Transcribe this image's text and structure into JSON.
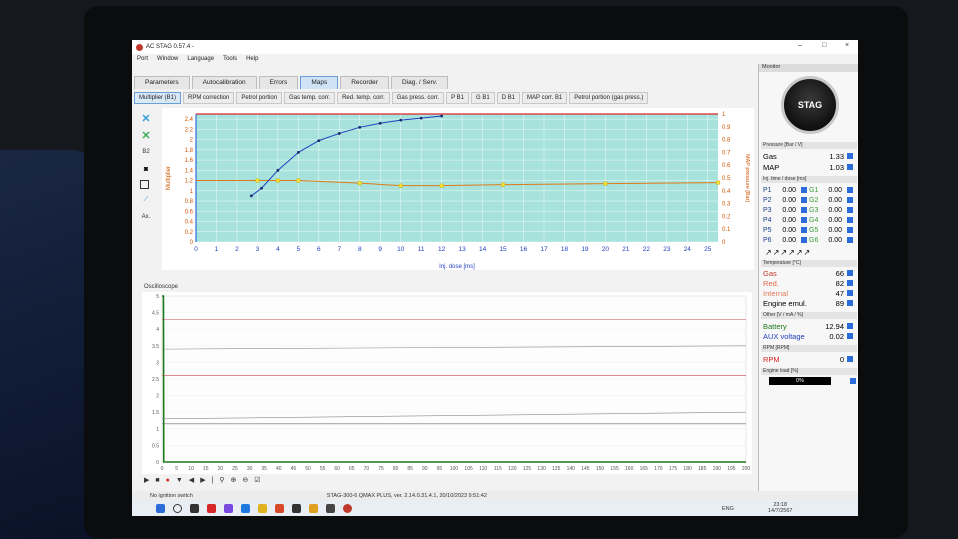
{
  "window": {
    "title": "AC STAG 0.57.4 -",
    "controls": [
      "–",
      "□",
      "×"
    ],
    "menu": [
      "Port",
      "Window",
      "Language",
      "Tools",
      "Help"
    ]
  },
  "main_tabs": [
    {
      "label": "Parameters",
      "active": false
    },
    {
      "label": "Autocalibration",
      "active": false
    },
    {
      "label": "Errors",
      "active": false
    },
    {
      "label": "Maps",
      "active": true
    },
    {
      "label": "Recorder",
      "active": false
    },
    {
      "label": "Diag. / Serv.",
      "active": false
    }
  ],
  "sub_tabs": [
    {
      "label": "Multiplier (B1)",
      "active": true
    },
    {
      "label": "RPM correction",
      "active": false
    },
    {
      "label": "Petrol portion",
      "active": false
    },
    {
      "label": "Gas temp. corr.",
      "active": false
    },
    {
      "label": "Red. temp. corr.",
      "active": false
    },
    {
      "label": "Gas press. corr.",
      "active": false
    },
    {
      "label": "P B1",
      "active": false
    },
    {
      "label": "G B1",
      "active": false
    },
    {
      "label": "D B1",
      "active": false
    },
    {
      "label": "MAP corr. B1",
      "active": false
    },
    {
      "label": "Petrol portion (gas press.)",
      "active": false
    }
  ],
  "tools": {
    "b2": "B2",
    "ax": "Ax."
  },
  "map_chart": {
    "xlabel": "Inj. dose [ms]",
    "ylabel_left": "Multiplier",
    "ylabel_right": "MAP pressure [Bar]",
    "x_ticks": [
      "0",
      "1",
      "2",
      "3",
      "4",
      "5",
      "6",
      "7",
      "8",
      "9",
      "10",
      "11",
      "12",
      "13",
      "14",
      "15",
      "16",
      "17",
      "18",
      "19",
      "20",
      "21",
      "22",
      "23",
      "24",
      "25"
    ],
    "y_left_ticks": [
      "0",
      "0.2",
      "0.4",
      "0.6",
      "0.8",
      "1",
      "1.2",
      "1.4",
      "1.6",
      "1.8",
      "2",
      "2.2",
      "2.4"
    ],
    "y_right_ticks": [
      "0",
      "0.1",
      "0.2",
      "0.3",
      "0.4",
      "0.5",
      "0.6",
      "0.7",
      "0.8",
      "0.9",
      "1"
    ]
  },
  "chart_data": [
    {
      "type": "line",
      "title": "",
      "xlabel": "Inj. dose [ms]",
      "ylabel": "Multiplier",
      "xlim": [
        0,
        25.5
      ],
      "ylim": [
        0,
        2.5
      ],
      "y2label": "MAP pressure [Bar]",
      "y2lim": [
        0,
        1
      ],
      "series": [
        {
          "name": "",
          "color": "#e07a18",
          "x": [
            0,
            3,
            4,
            5,
            8,
            10,
            12,
            15,
            20,
            25.5
          ],
          "y": [
            1.2,
            1.2,
            1.2,
            1.2,
            1.15,
            1.1,
            1.1,
            1.12,
            1.14,
            1.16
          ]
        },
        {
          "name": "",
          "color": "#1f3fbf",
          "x": [
            2.7,
            3.2,
            4,
            5,
            6,
            7,
            8,
            9,
            10,
            11,
            12
          ],
          "y": [
            0.9,
            1.05,
            1.4,
            1.75,
            1.98,
            2.12,
            2.24,
            2.32,
            2.38,
            2.42,
            2.46
          ]
        },
        {
          "name": "",
          "color": "#d62828",
          "x": [
            0,
            25.5
          ],
          "y": [
            2.5,
            2.5
          ]
        }
      ]
    },
    {
      "type": "line",
      "title": "Oscilloscope",
      "xlim": [
        0,
        200
      ],
      "ylim": [
        0,
        5
      ],
      "x_ticks": [
        "0",
        "5",
        "10",
        "15",
        "20",
        "25",
        "30",
        "35",
        "40",
        "45",
        "50",
        "55",
        "60",
        "65",
        "70",
        "75",
        "80",
        "85",
        "90",
        "95",
        "100",
        "105",
        "110",
        "115",
        "120",
        "125",
        "130",
        "135",
        "140",
        "145",
        "150",
        "155",
        "160",
        "165",
        "170",
        "175",
        "180",
        "185",
        "190",
        "195",
        "200"
      ],
      "y_ticks": [
        "0",
        "0.5",
        "1",
        "1.5",
        "2",
        "2.5",
        "3",
        "3.5",
        "4",
        "4.5",
        "5"
      ],
      "series": [
        {
          "name": "",
          "color": "#1a7a1a",
          "x": [
            0,
            0.5,
            0.6,
            200
          ],
          "y": [
            5,
            5,
            0,
            0
          ]
        },
        {
          "name": "",
          "color": "#c24a4a",
          "x": [
            0,
            200
          ],
          "y": [
            4.3,
            4.3
          ]
        },
        {
          "name": "",
          "color": "#c24a4a",
          "x": [
            0,
            200
          ],
          "y": [
            2.6,
            2.6
          ]
        },
        {
          "name": "",
          "color": "#8a8a8a",
          "x": [
            0,
            200
          ],
          "y": [
            3.4,
            3.5
          ]
        },
        {
          "name": "",
          "color": "#8a8a8a",
          "x": [
            0,
            200
          ],
          "y": [
            1.3,
            1.5
          ]
        },
        {
          "name": "",
          "color": "#6a6a6a",
          "x": [
            0,
            200
          ],
          "y": [
            1.15,
            1.15
          ]
        }
      ]
    }
  ],
  "oscilloscope": {
    "title": "Oscilloscope"
  },
  "monitor": {
    "title": "Monitor",
    "logo": "STAG",
    "pressure_header": "Pressure [Bar / V]",
    "gas_label": "Gas",
    "gas_value": "1.33",
    "map_label": "MAP",
    "map_value": "1.03",
    "inj_header": "Inj. time / dose [ms]",
    "injectors": [
      {
        "p": "P1",
        "pv": "0.00",
        "g": "G1",
        "gv": "0.00"
      },
      {
        "p": "P2",
        "pv": "0.00",
        "g": "G2",
        "gv": "0.00"
      },
      {
        "p": "P3",
        "pv": "0.00",
        "g": "G3",
        "gv": "0.00"
      },
      {
        "p": "P4",
        "pv": "0.00",
        "g": "G4",
        "gv": "0.00"
      },
      {
        "p": "P5",
        "pv": "0.00",
        "g": "G5",
        "gv": "0.00"
      },
      {
        "p": "P6",
        "pv": "0.00",
        "g": "G6",
        "gv": "0.00"
      }
    ],
    "temp_header": "Temperature [°C]",
    "temps": [
      {
        "label": "Gas",
        "value": "66",
        "color": "#c0392b"
      },
      {
        "label": "Red.",
        "value": "82",
        "color": "#e06a4a"
      },
      {
        "label": "Internal",
        "value": "47",
        "color": "#e07a5a"
      },
      {
        "label": "Engine emul.",
        "value": "89",
        "color": "#111111"
      }
    ],
    "other_header": "Other [V / mA / %]",
    "battery_label": "Battery",
    "battery_value": "12.94",
    "aux_label": "AUX voltage",
    "aux_value": "0.02",
    "rpm_header": "RPM [RPM]",
    "rpm_label": "RPM",
    "rpm_value": "0",
    "load_header": "Engine load [%]",
    "load_value": "0%"
  },
  "status": {
    "left": "No ignition switch",
    "center": "STAG-300-6 QMAX PLUS, ver. 2.14.0.31.4.1, 20/10/2023 9:51:42"
  },
  "taskbar": {
    "lang": "ENG",
    "time": "23:18",
    "date": "14/7/2567"
  }
}
